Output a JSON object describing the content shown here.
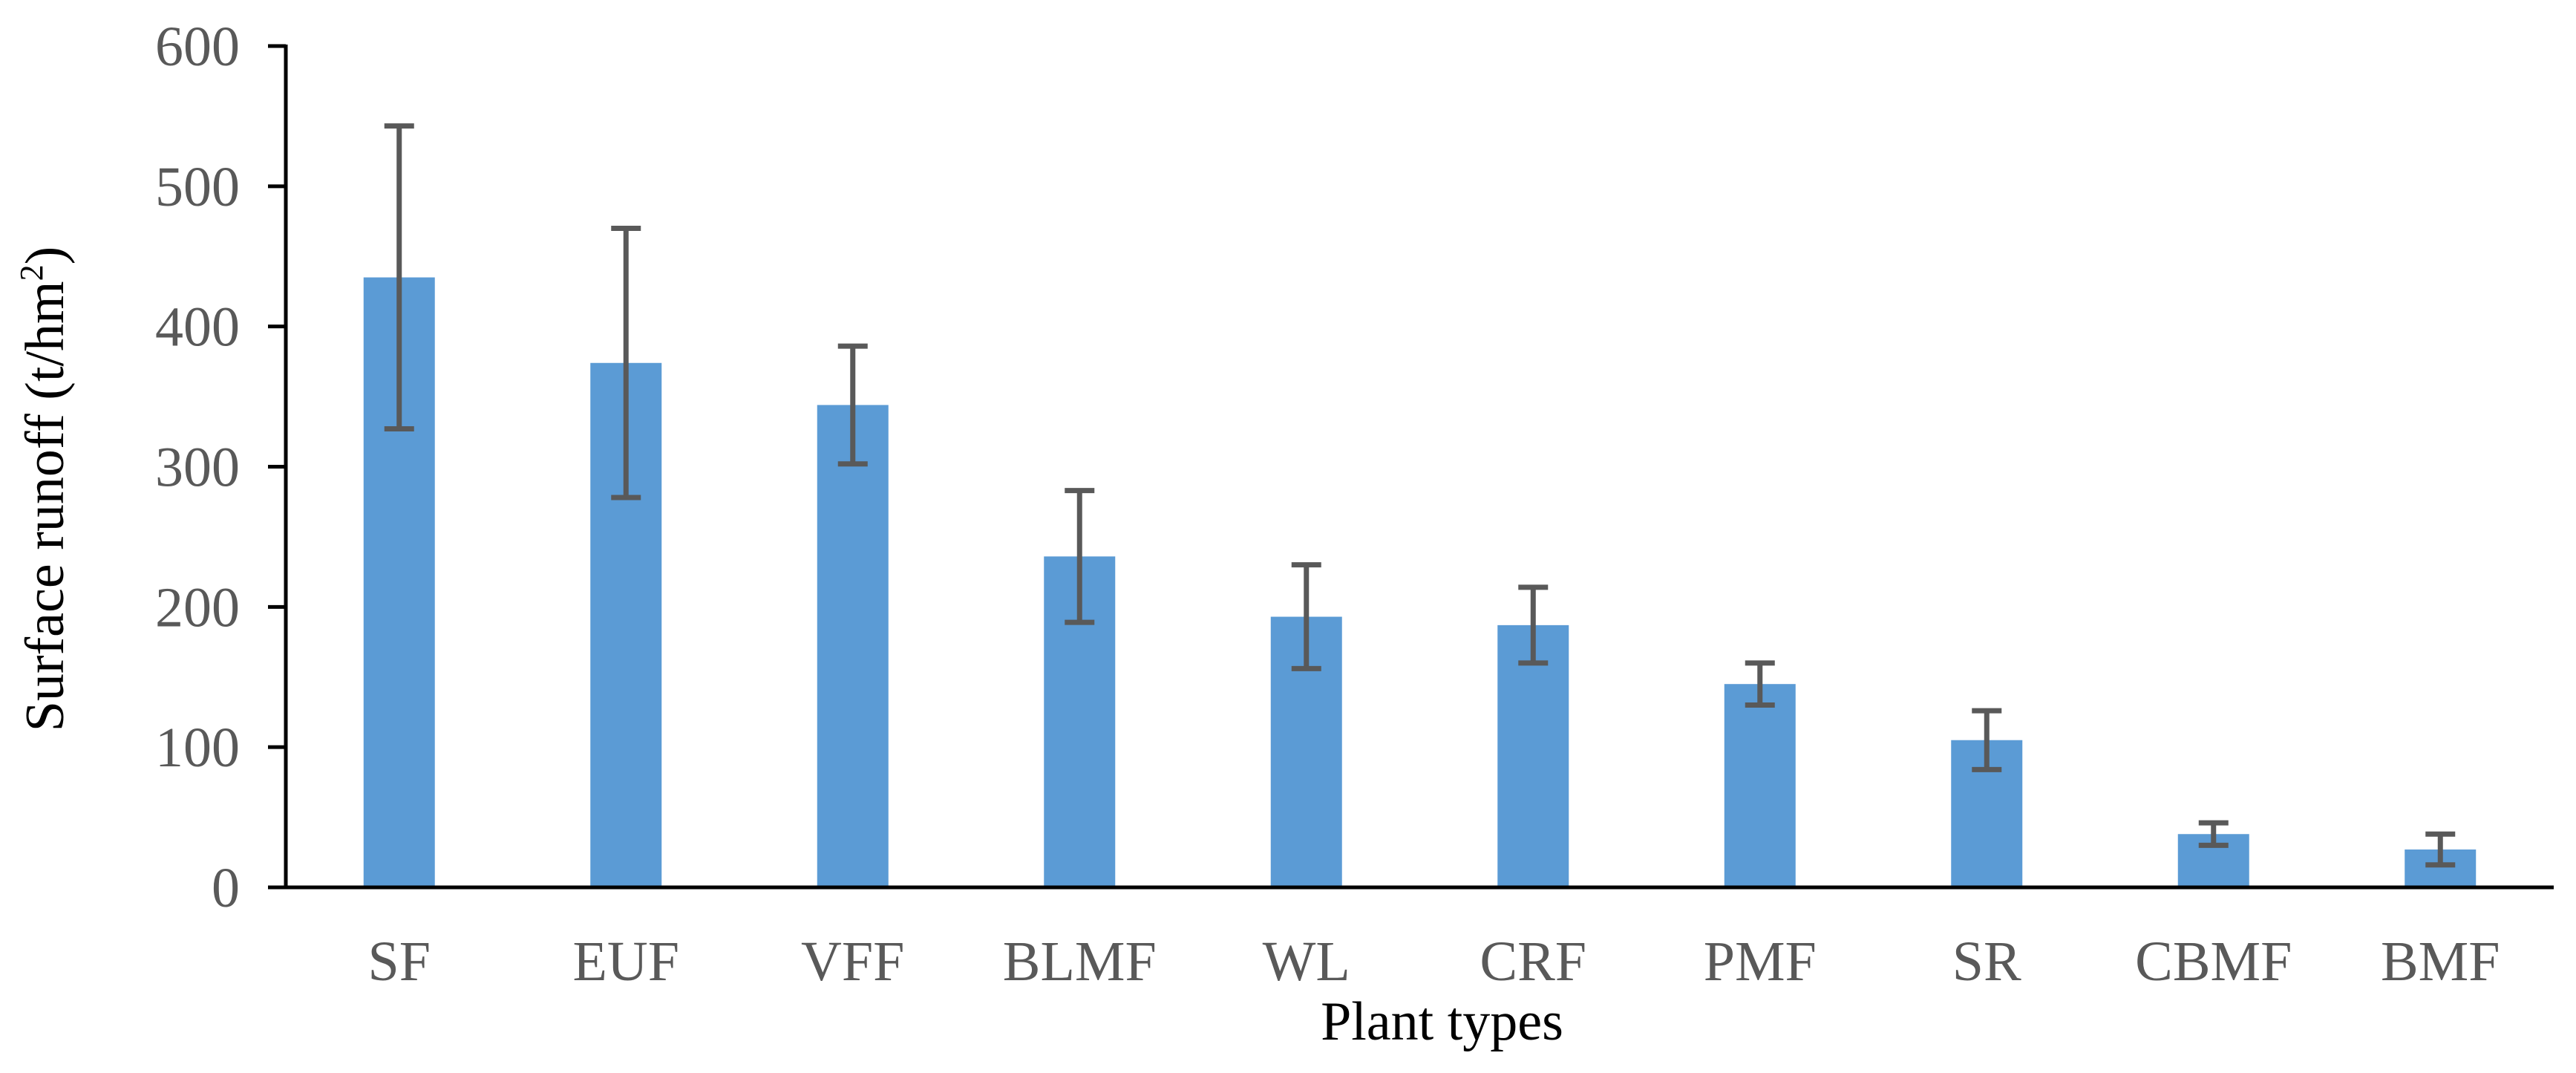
{
  "chart_data": {
    "type": "bar",
    "title": "",
    "xlabel": "Plant types",
    "ylabel_main": "Surface runoff (t/hm",
    "ylabel_superscript": "2",
    "ylabel_close": ")",
    "categories": [
      "SF",
      "EUF",
      "VFF",
      "BLMF",
      "WL",
      "CRF",
      "PMF",
      "SR",
      "CBMF",
      "BMF"
    ],
    "series": [
      {
        "name": "Surface runoff",
        "values": [
          435,
          374,
          344,
          236,
          193,
          187,
          145,
          105,
          38,
          27
        ],
        "error": [
          108,
          96,
          42,
          47,
          37,
          27,
          15,
          21,
          8,
          11
        ]
      }
    ],
    "ylim": [
      0,
      600
    ],
    "yticks": [
      0,
      100,
      200,
      300,
      400,
      500,
      600
    ],
    "grid": false,
    "bar_color": "#5B9BD5",
    "error_color": "#595959",
    "axis_color": "#000000"
  }
}
